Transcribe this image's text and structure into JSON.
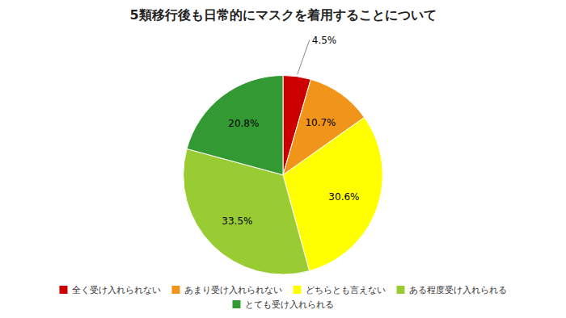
{
  "chart_data": {
    "type": "pie",
    "title": "5類移行後も日常的にマスクを着用することについて",
    "categories": [
      "全く受け入れられない",
      "あまり受け入れられない",
      "どちらとも言えない",
      "ある程度受け入れられる",
      "とても受け入れられる"
    ],
    "values": [
      4.5,
      10.7,
      30.6,
      33.5,
      20.8
    ],
    "value_labels": [
      "4.5%",
      "10.7%",
      "30.6%",
      "33.5%",
      "20.8%"
    ],
    "colors": [
      "#cc0000",
      "#f0951a",
      "#ffff00",
      "#99cc33",
      "#339933"
    ],
    "data_labels": true,
    "legend": "bottom"
  }
}
